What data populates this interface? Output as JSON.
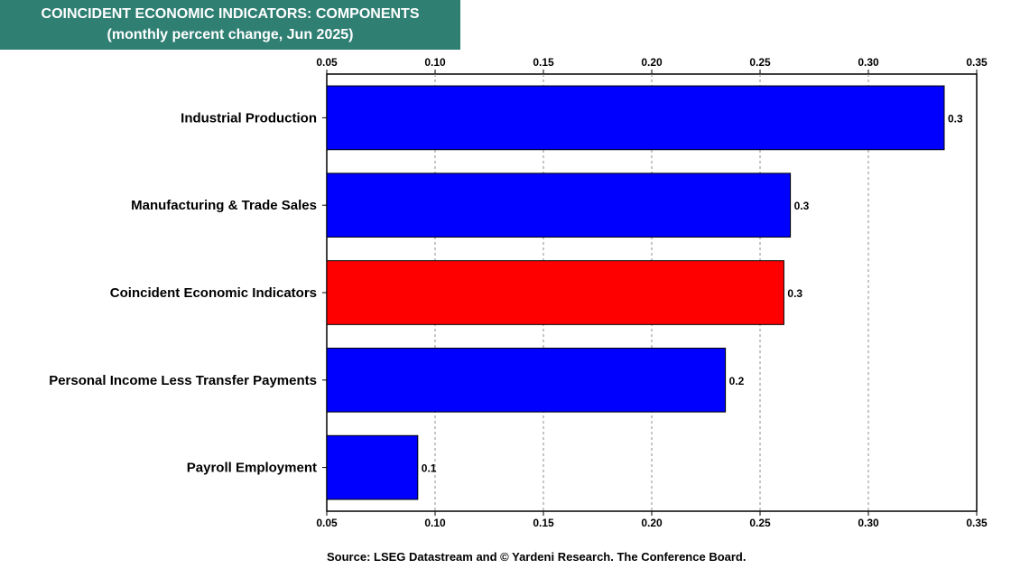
{
  "chart_data": {
    "type": "bar",
    "orientation": "horizontal",
    "title": "COINCIDENT ECONOMIC INDICATORS: COMPONENTS",
    "subtitle": "(monthly percent change, Jun 2025)",
    "categories": [
      "Industrial Production",
      "Manufacturing & Trade Sales",
      "Coincident Economic Indicators",
      "Personal Income Less Transfer Payments",
      "Payroll Employment"
    ],
    "values": [
      0.335,
      0.264,
      0.261,
      0.234,
      0.092
    ],
    "value_labels": [
      "0.3",
      "0.3",
      "0.3",
      "0.2",
      "0.1"
    ],
    "bar_colors": [
      "#0000ff",
      "#0000ff",
      "#ff0000",
      "#0000ff",
      "#0000ff"
    ],
    "xlim": [
      0.05,
      0.35
    ],
    "xticks": [
      "0.05",
      "0.10",
      "0.15",
      "0.20",
      "0.25",
      "0.30",
      "0.35"
    ],
    "grid": true,
    "source": "Source: LSEG Datastream and © Yardeni Research. The Conference Board."
  },
  "colors": {
    "title_background": "#2f7f73",
    "highlight_bar": "#ff0000",
    "bar": "#0000ff"
  }
}
